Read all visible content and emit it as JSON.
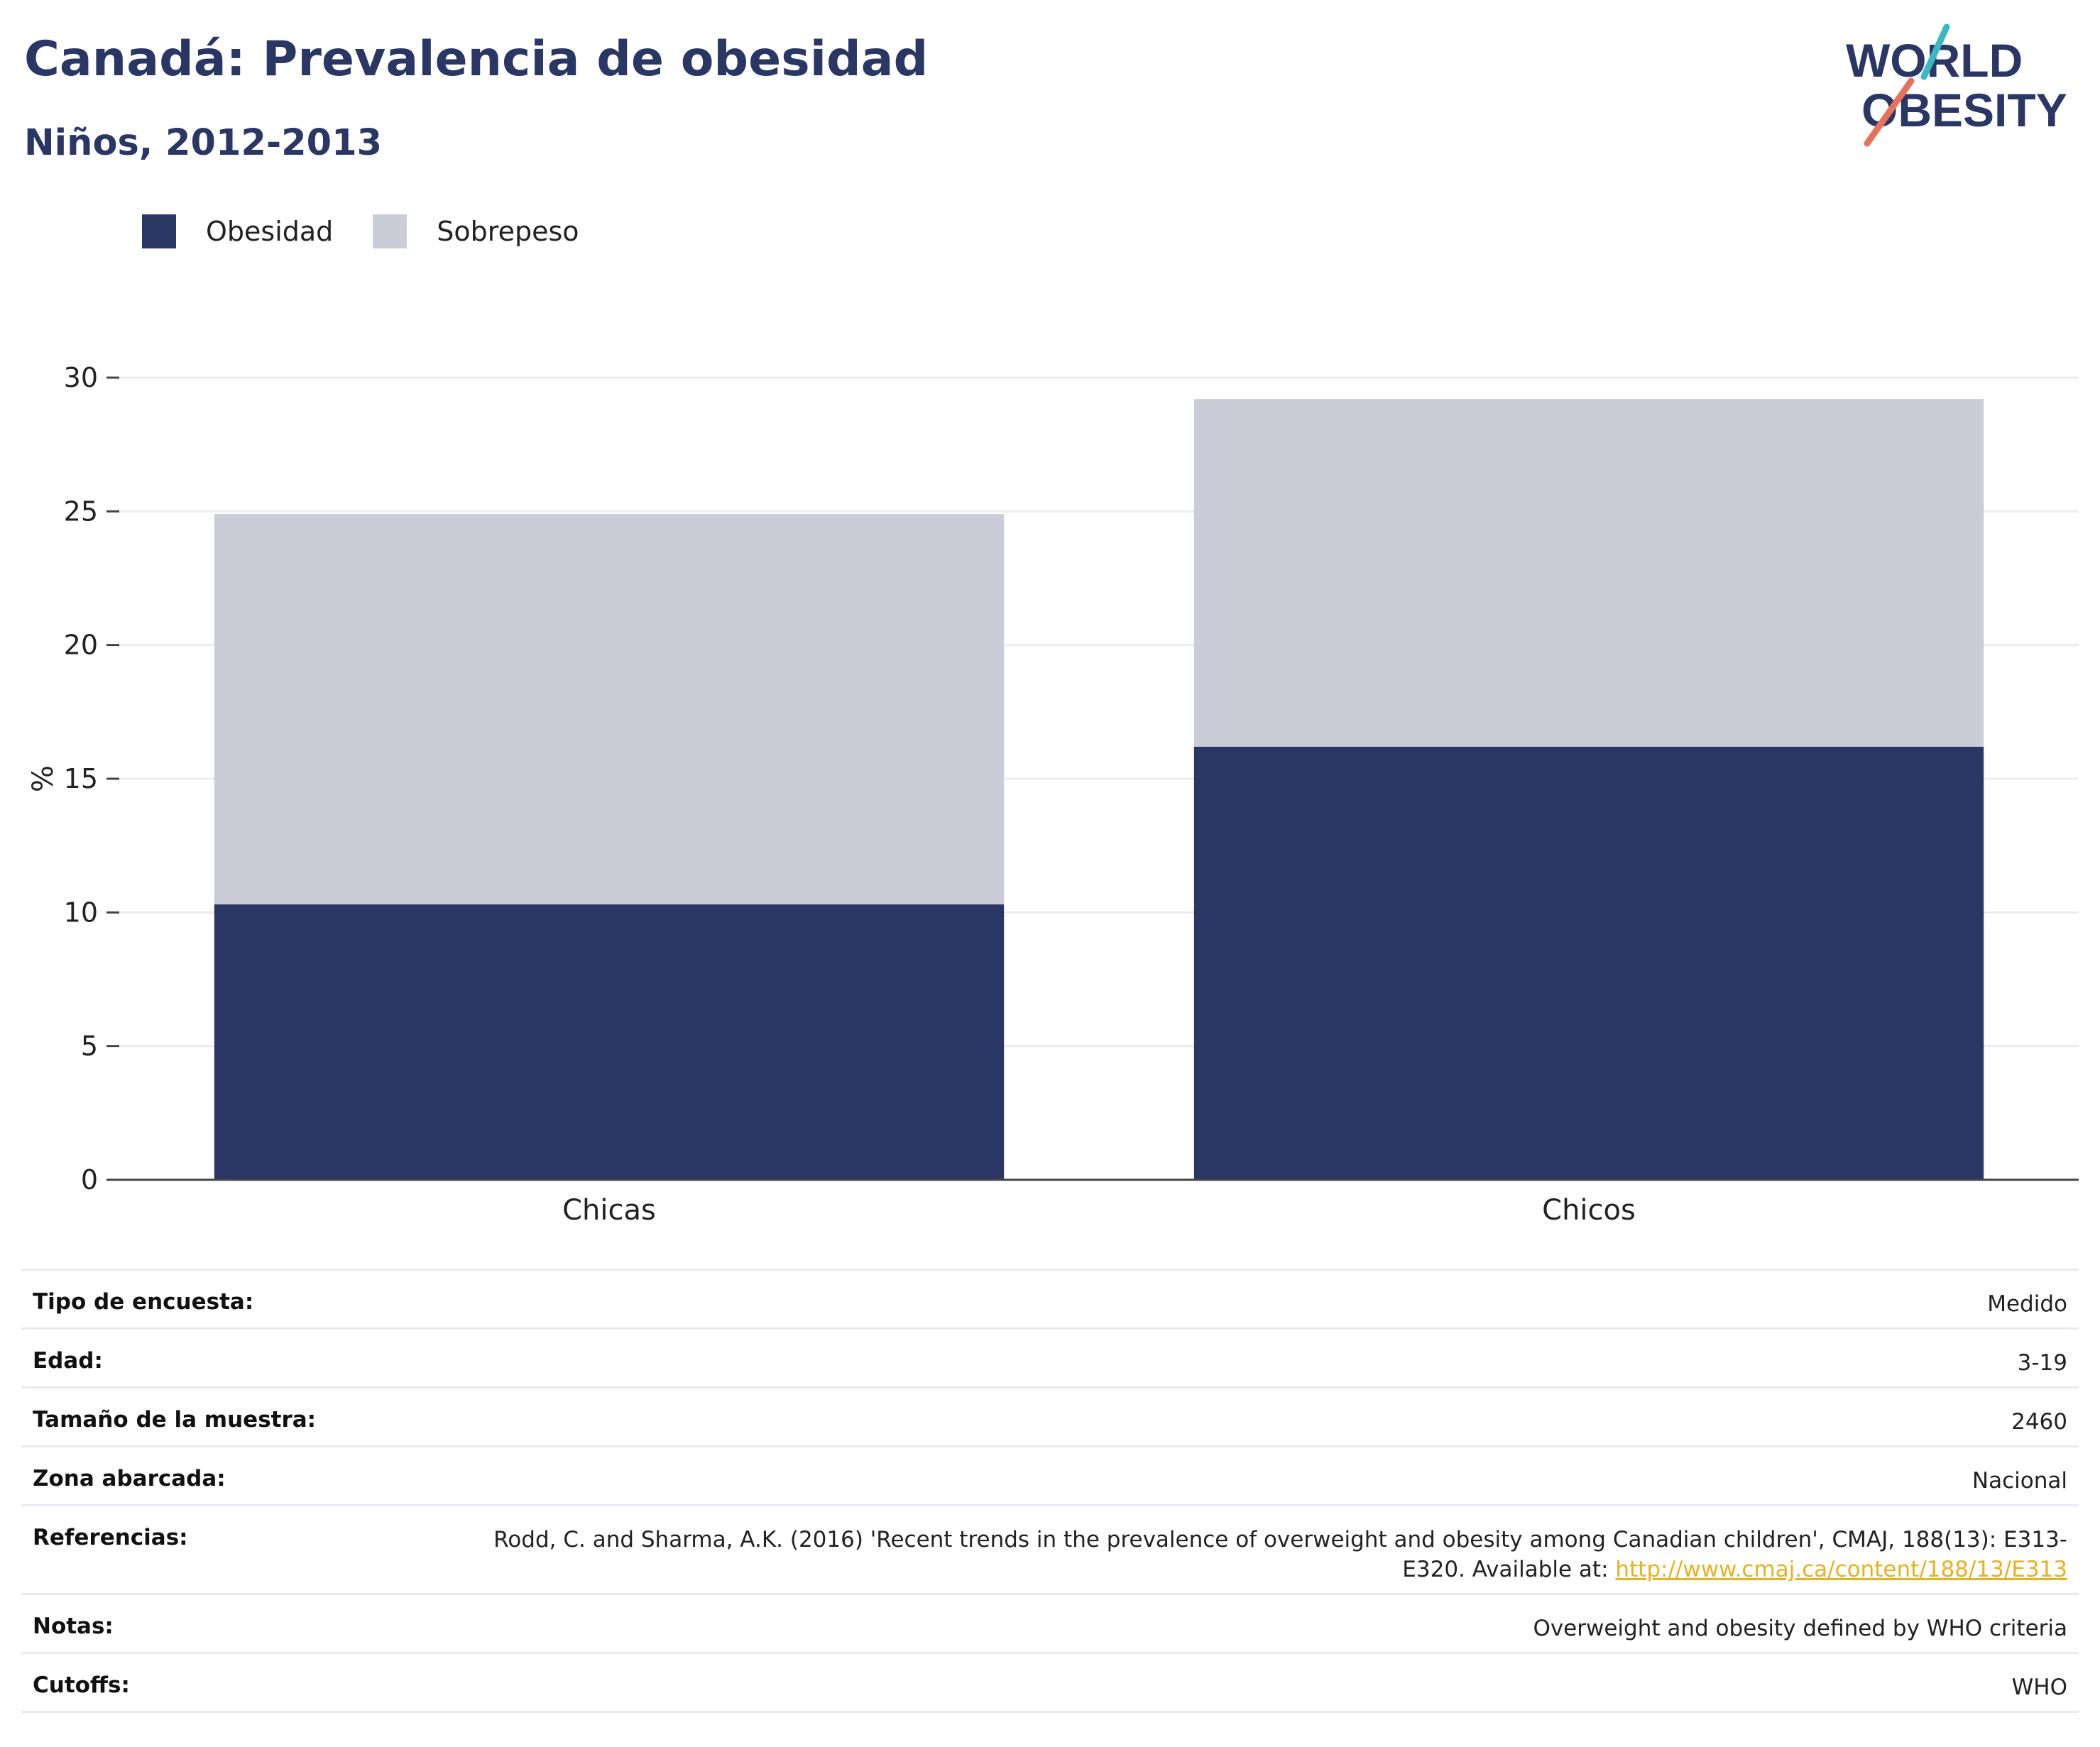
{
  "header": {
    "title": "Canadá: Prevalencia de obesidad",
    "subtitle": "Niños, 2012-2013"
  },
  "logo": {
    "line1": "WORLD",
    "line2": "OBESITY"
  },
  "colors": {
    "title": "#2a3764",
    "obesidad": "#2a3764",
    "sobrepeso": "#cacdd8",
    "grid": "#ececf2",
    "axis": "#444444",
    "link": "#e8b11f",
    "logo_teal": "#3bb8c4",
    "logo_coral": "#e8705e"
  },
  "chart_data": {
    "type": "bar",
    "stacked": true,
    "categories": [
      "Chicas",
      "Chicos"
    ],
    "series": [
      {
        "name": "Obesidad",
        "values": [
          10.3,
          16.2
        ]
      },
      {
        "name": "Sobrepeso",
        "values": [
          14.6,
          13.0
        ]
      }
    ],
    "ylabel": "%",
    "ylim": [
      0,
      30
    ],
    "yticks": [
      0,
      5,
      10,
      15,
      20,
      25,
      30
    ],
    "grid": true,
    "legend_position": "top-left"
  },
  "info": {
    "rows": [
      {
        "label": "Tipo de encuesta:",
        "value": "Medido"
      },
      {
        "label": "Edad:",
        "value": "3-19"
      },
      {
        "label": "Tamaño de la muestra:",
        "value": "2460"
      },
      {
        "label": "Zona abarcada:",
        "value": "Nacional"
      },
      {
        "label": "Referencias:",
        "value": "Rodd, C. and Sharma, A.K. (2016) 'Recent trends in the prevalence of overweight and obesity among Canadian children', CMAJ, 188(13): E313-E320. Available at: ",
        "link": "http://www.cmaj.ca/content/188/13/E313"
      },
      {
        "label": "Notas:",
        "value": "Overweight and obesity defined by WHO criteria"
      },
      {
        "label": "Cutoffs:",
        "value": "WHO"
      }
    ]
  }
}
